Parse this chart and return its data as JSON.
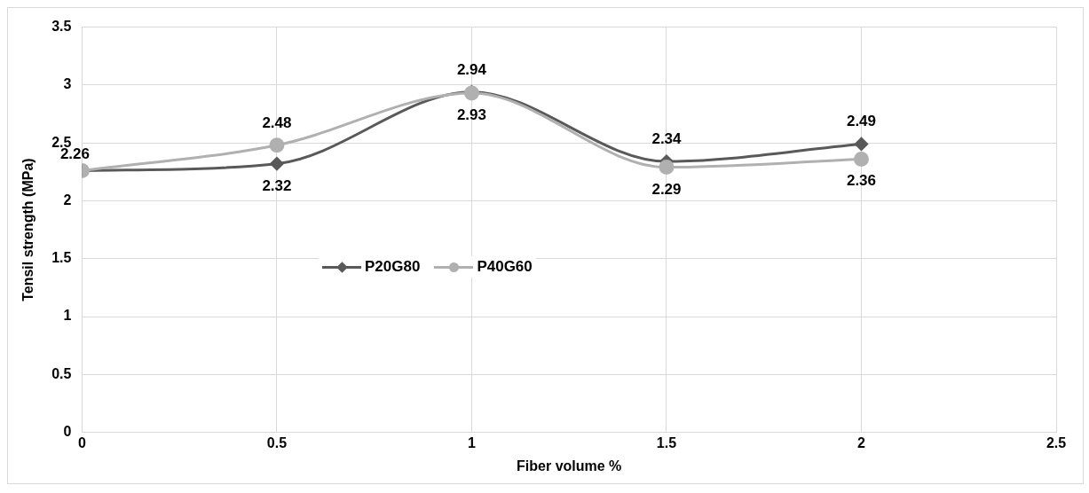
{
  "chart_data": {
    "type": "line",
    "xlabel": "Fiber volume %",
    "ylabel": "Tensil strength (MPa)",
    "x": [
      0,
      0.5,
      1,
      1.5,
      2
    ],
    "series": [
      {
        "name": "P20G80",
        "color": "#595959",
        "marker": "diamond",
        "values": [
          2.26,
          2.32,
          2.94,
          2.34,
          2.49
        ],
        "value_labels": [
          "2.26",
          "2.32",
          "2.94",
          "2.34",
          "2.49"
        ]
      },
      {
        "name": "P40G60",
        "color": "#b0b0b0",
        "marker": "circle",
        "values": [
          2.26,
          2.48,
          2.93,
          2.29,
          2.36
        ],
        "value_labels": [
          null,
          "2.48",
          "2.93",
          "2.29",
          "2.36"
        ]
      }
    ],
    "xlim": [
      0,
      2.5
    ],
    "xticks": [
      0,
      0.5,
      1,
      1.5,
      2,
      2.5
    ],
    "ylim": [
      0,
      3.5
    ],
    "yticks": [
      0,
      0.5,
      1,
      1.5,
      2,
      2.5,
      3,
      3.5
    ],
    "grid": true,
    "legend": "center left",
    "line_style": "solid"
  }
}
